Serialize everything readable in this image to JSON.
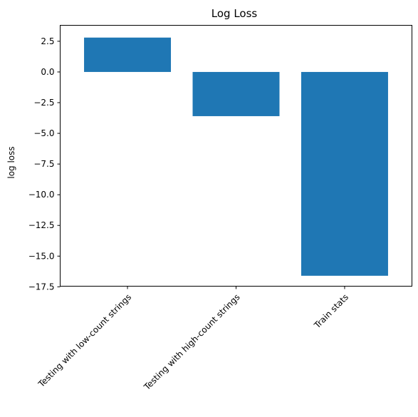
{
  "chart_data": {
    "type": "bar",
    "title": "Log Loss",
    "xlabel": "",
    "ylabel": "log loss",
    "categories": [
      "Testing with low-count strings",
      "Testing with high-count strings",
      "Train stats"
    ],
    "values": [
      2.8,
      -3.6,
      -16.6
    ],
    "ylim": [
      -17.45,
      3.8
    ],
    "yticks": [
      2.5,
      0.0,
      -2.5,
      -5.0,
      -7.5,
      -10.0,
      -12.5,
      -15.0,
      -17.5
    ],
    "ytick_labels": [
      "2.5",
      "0.0",
      "−2.5",
      "−5.0",
      "−7.5",
      "−10.0",
      "−12.5",
      "−15.0",
      "−17.5"
    ],
    "bar_color": "#1f77b4",
    "grid": false,
    "legend": "none"
  }
}
